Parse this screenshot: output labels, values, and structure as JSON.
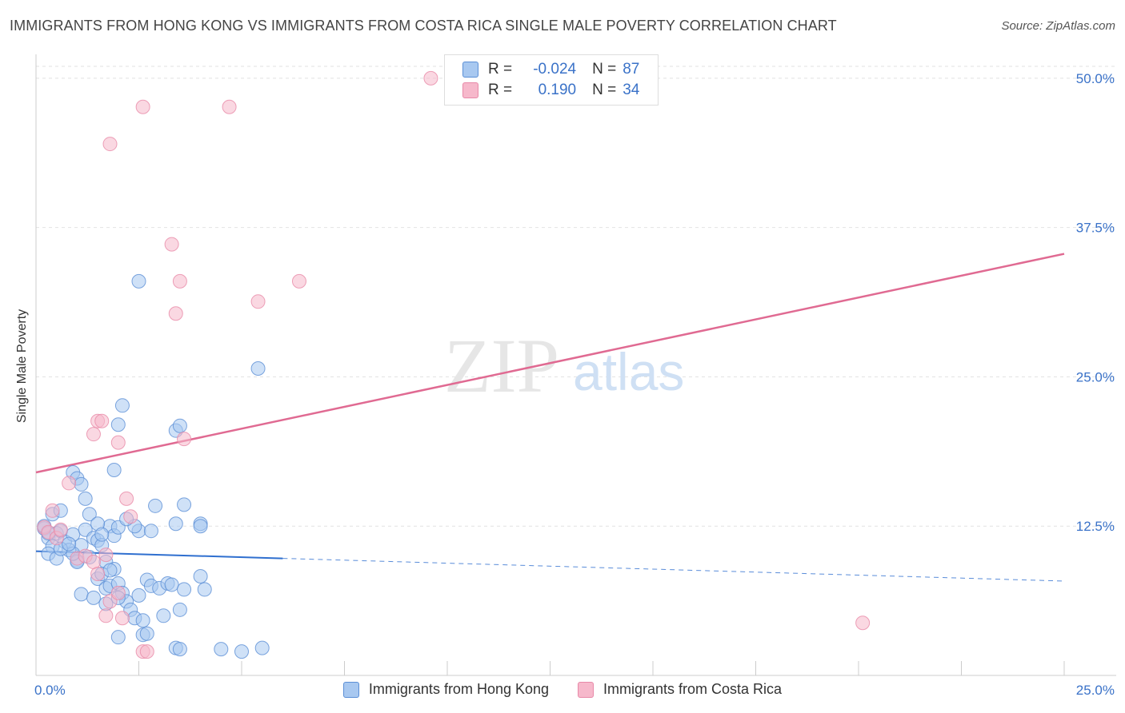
{
  "title": "IMMIGRANTS FROM HONG KONG VS IMMIGRANTS FROM COSTA RICA SINGLE MALE POVERTY CORRELATION CHART",
  "source": "Source: ZipAtlas.com",
  "watermark": {
    "zip": "ZIP",
    "atlas": "atlas"
  },
  "legend_top": {
    "r_label": "R =",
    "n_label": "N =",
    "rows": [
      {
        "name": "Immigrants from Hong Kong",
        "r": "-0.024",
        "n": "87"
      },
      {
        "name": "Immigrants from Costa Rica",
        "r": "0.190",
        "n": "34"
      }
    ]
  },
  "colors": {
    "blue_fill": "#a8c8f0",
    "blue_stroke": "#5b8fd6",
    "blue_line": "#2f6fcf",
    "pink_fill": "#f6b8cb",
    "pink_stroke": "#e889a8",
    "pink_line": "#e06a92",
    "tick_text": "#3a72c8",
    "grid": "#e2e2e2"
  },
  "chart_data": {
    "type": "scatter",
    "title": "IMMIGRANTS FROM HONG KONG VS IMMIGRANTS FROM COSTA RICA SINGLE MALE POVERTY CORRELATION CHART",
    "xlabel": "",
    "ylabel": "Single Male Poverty",
    "xlim": [
      0,
      25
    ],
    "ylim": [
      0,
      52
    ],
    "x_tick_labels": [
      "0.0%",
      "25.0%"
    ],
    "y_ticks": [
      12.5,
      25.0,
      37.5,
      50.0
    ],
    "y_tick_labels": [
      "12.5%",
      "25.0%",
      "37.5%",
      "50.0%"
    ],
    "legend": [
      "Immigrants from Hong Kong",
      "Immigrants from Costa Rica"
    ],
    "series": [
      {
        "name": "Immigrants from Hong Kong",
        "r": -0.024,
        "n": 87,
        "trend": {
          "x": [
            0,
            6
          ],
          "y": [
            10.4,
            9.8
          ],
          "dashed_to": [
            25,
            7.9
          ]
        },
        "points": [
          [
            0.2,
            12.3
          ],
          [
            0.3,
            11.5
          ],
          [
            0.4,
            10.8
          ],
          [
            0.5,
            11.9
          ],
          [
            0.6,
            12.1
          ],
          [
            0.7,
            11.2
          ],
          [
            0.3,
            10.2
          ],
          [
            0.5,
            9.8
          ],
          [
            0.8,
            10.5
          ],
          [
            0.9,
            11.8
          ],
          [
            1.0,
            9.6
          ],
          [
            1.1,
            10.9
          ],
          [
            1.2,
            12.2
          ],
          [
            0.4,
            13.5
          ],
          [
            0.6,
            13.8
          ],
          [
            0.9,
            17.0
          ],
          [
            1.0,
            16.5
          ],
          [
            1.1,
            16.0
          ],
          [
            1.2,
            14.8
          ],
          [
            1.3,
            13.5
          ],
          [
            1.4,
            11.5
          ],
          [
            1.5,
            11.3
          ],
          [
            1.6,
            10.9
          ],
          [
            1.7,
            9.5
          ],
          [
            1.8,
            12.5
          ],
          [
            1.9,
            11.7
          ],
          [
            2.0,
            12.4
          ],
          [
            1.9,
            17.2
          ],
          [
            2.1,
            22.6
          ],
          [
            2.0,
            21.0
          ],
          [
            3.4,
            20.5
          ],
          [
            3.5,
            20.9
          ],
          [
            2.5,
            12.1
          ],
          [
            2.8,
            12.1
          ],
          [
            2.9,
            14.2
          ],
          [
            3.4,
            12.7
          ],
          [
            3.6,
            14.3
          ],
          [
            4.0,
            12.7
          ],
          [
            4.0,
            12.5
          ],
          [
            1.5,
            8.1
          ],
          [
            1.6,
            8.5
          ],
          [
            1.7,
            7.3
          ],
          [
            1.8,
            7.5
          ],
          [
            1.9,
            8.9
          ],
          [
            2.0,
            7.7
          ],
          [
            2.1,
            6.9
          ],
          [
            2.2,
            6.2
          ],
          [
            2.3,
            5.5
          ],
          [
            2.4,
            4.8
          ],
          [
            2.5,
            6.7
          ],
          [
            2.6,
            4.6
          ],
          [
            2.7,
            8.0
          ],
          [
            2.8,
            7.5
          ],
          [
            3.0,
            7.3
          ],
          [
            3.1,
            5.0
          ],
          [
            3.2,
            7.7
          ],
          [
            3.3,
            7.6
          ],
          [
            3.5,
            5.5
          ],
          [
            3.6,
            7.2
          ],
          [
            4.0,
            8.3
          ],
          [
            4.1,
            7.2
          ],
          [
            2.4,
            12.5
          ],
          [
            2.2,
            13.1
          ],
          [
            2.0,
            3.2
          ],
          [
            2.6,
            3.4
          ],
          [
            2.7,
            3.5
          ],
          [
            3.4,
            2.3
          ],
          [
            3.5,
            2.2
          ],
          [
            4.5,
            2.2
          ],
          [
            5.0,
            2.0
          ],
          [
            5.5,
            2.3
          ],
          [
            2.5,
            33.0
          ],
          [
            5.4,
            25.7
          ],
          [
            1.5,
            12.7
          ],
          [
            1.6,
            11.8
          ],
          [
            1.3,
            9.9
          ],
          [
            1.0,
            9.5
          ],
          [
            0.9,
            10.2
          ],
          [
            1.8,
            8.8
          ],
          [
            1.1,
            6.8
          ],
          [
            1.4,
            6.5
          ],
          [
            1.7,
            6.0
          ],
          [
            2.0,
            6.5
          ],
          [
            0.2,
            12.5
          ],
          [
            0.3,
            11.9
          ],
          [
            0.6,
            10.6
          ],
          [
            0.8,
            11.0
          ]
        ]
      },
      {
        "name": "Immigrants from Costa Rica",
        "r": 0.19,
        "n": 34,
        "trend": {
          "x": [
            0,
            25
          ],
          "y": [
            17.0,
            35.3
          ]
        },
        "points": [
          [
            9.6,
            50.0
          ],
          [
            2.6,
            47.6
          ],
          [
            4.7,
            47.6
          ],
          [
            1.8,
            44.5
          ],
          [
            3.3,
            36.1
          ],
          [
            3.5,
            33.0
          ],
          [
            3.4,
            30.3
          ],
          [
            6.4,
            33.0
          ],
          [
            5.4,
            31.3
          ],
          [
            1.4,
            20.2
          ],
          [
            1.5,
            21.3
          ],
          [
            1.6,
            21.3
          ],
          [
            2.0,
            19.5
          ],
          [
            3.6,
            19.8
          ],
          [
            0.8,
            16.1
          ],
          [
            0.4,
            13.8
          ],
          [
            0.2,
            12.4
          ],
          [
            0.3,
            12.0
          ],
          [
            0.5,
            11.5
          ],
          [
            0.6,
            12.2
          ],
          [
            1.0,
            9.8
          ],
          [
            1.2,
            10.0
          ],
          [
            1.4,
            9.5
          ],
          [
            1.7,
            10.1
          ],
          [
            2.2,
            14.8
          ],
          [
            2.3,
            13.3
          ],
          [
            1.5,
            8.5
          ],
          [
            1.8,
            6.2
          ],
          [
            2.0,
            6.9
          ],
          [
            1.7,
            5.0
          ],
          [
            2.1,
            4.8
          ],
          [
            2.6,
            2.0
          ],
          [
            2.7,
            2.0
          ],
          [
            20.1,
            4.4
          ]
        ]
      }
    ]
  }
}
